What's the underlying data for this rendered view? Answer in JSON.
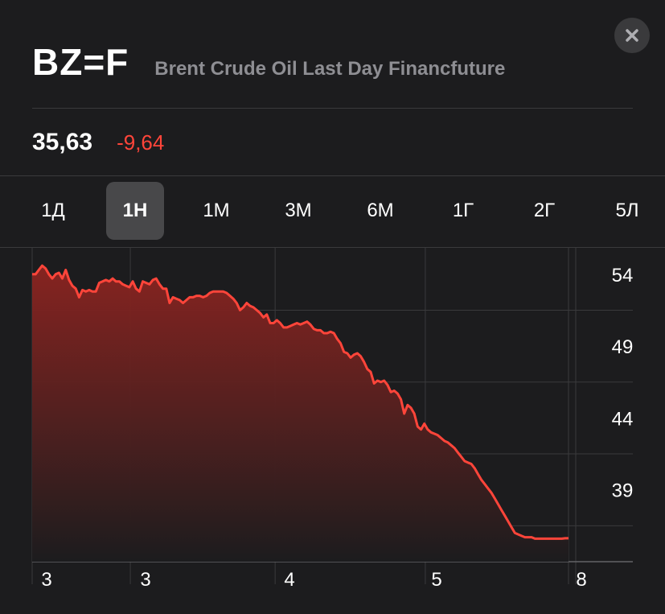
{
  "header": {
    "ticker": "BZ=F",
    "company_name": "Brent Crude Oil Last Day Financfuture"
  },
  "quote": {
    "price": "35,63",
    "change": "-9,64"
  },
  "tabs": [
    {
      "label": "1Д",
      "active": false
    },
    {
      "label": "1Н",
      "active": true
    },
    {
      "label": "1М",
      "active": false
    },
    {
      "label": "3М",
      "active": false
    },
    {
      "label": "6М",
      "active": false
    },
    {
      "label": "1Г",
      "active": false
    },
    {
      "label": "2Г",
      "active": false
    },
    {
      "label": "5Л",
      "active": false
    }
  ],
  "icons": {
    "close": "close-icon"
  },
  "colors": {
    "background": "#1c1c1e",
    "line": "#ff453a",
    "negative": "#ff453a",
    "grid": "#3a3a3c",
    "muted": "#8e8e93"
  },
  "chart_data": {
    "type": "area",
    "y_tick_labels": [
      "54",
      "49",
      "44",
      "39"
    ],
    "x_tick_labels": [
      "3",
      "3",
      "4",
      "5",
      "8"
    ],
    "ylim": [
      34,
      55.5
    ],
    "y_axis_position": "right",
    "grid": true,
    "x": [
      0,
      1,
      2,
      3,
      4,
      5,
      6,
      7,
      8,
      9,
      10,
      11,
      12,
      13,
      14,
      15,
      16,
      17,
      18,
      19,
      20,
      21,
      22,
      23,
      24,
      25,
      26,
      27,
      28,
      29,
      30,
      31,
      32,
      33,
      34,
      35,
      36,
      37,
      38,
      39,
      40,
      41,
      42,
      43,
      44,
      45,
      46,
      47,
      48,
      49,
      50,
      51,
      52,
      53,
      54,
      55,
      56,
      57,
      58,
      59,
      60,
      61,
      62,
      63,
      64,
      65,
      66,
      67,
      68,
      69,
      70,
      71,
      72,
      73,
      74,
      75,
      76,
      77,
      78,
      79,
      80,
      81,
      82,
      83,
      84,
      85,
      86,
      87,
      88,
      89,
      90,
      91,
      92,
      93,
      94,
      95,
      96,
      97,
      98,
      99,
      100,
      101,
      102,
      103,
      104,
      105,
      106,
      107,
      108,
      109,
      110,
      111,
      112,
      113,
      114,
      115,
      116,
      117,
      118,
      119,
      120,
      121,
      122,
      123,
      124,
      125,
      126,
      127,
      128,
      129,
      130,
      131,
      132,
      133,
      134,
      135,
      136,
      137,
      138,
      139,
      140,
      141,
      142,
      143,
      144,
      145,
      146,
      147,
      148,
      149,
      150,
      151,
      152,
      153,
      154,
      155,
      156,
      157,
      158,
      159,
      160
    ],
    "values": [
      54.0,
      54.0,
      54.3,
      54.6,
      54.4,
      54.0,
      53.7,
      54.0,
      54.1,
      53.7,
      54.3,
      53.6,
      53.2,
      53.0,
      52.4,
      52.9,
      52.8,
      52.9,
      52.8,
      52.8,
      53.4,
      53.5,
      53.6,
      53.5,
      53.7,
      53.5,
      53.5,
      53.3,
      53.2,
      53.1,
      53.5,
      53.0,
      52.8,
      53.5,
      53.4,
      53.3,
      53.6,
      53.7,
      53.3,
      53.0,
      53.0,
      52.0,
      52.4,
      52.3,
      52.2,
      52.0,
      52.2,
      52.4,
      52.4,
      52.5,
      52.5,
      52.4,
      52.5,
      52.7,
      52.8,
      52.8,
      52.8,
      52.8,
      52.7,
      52.5,
      52.3,
      52.0,
      51.5,
      51.7,
      52.0,
      51.8,
      51.7,
      51.5,
      51.3,
      51.0,
      51.2,
      50.6,
      50.6,
      50.8,
      50.6,
      50.3,
      50.3,
      50.4,
      50.5,
      50.6,
      50.5,
      50.6,
      50.7,
      50.5,
      50.2,
      50.1,
      50.1,
      49.9,
      49.9,
      50.0,
      49.9,
      49.5,
      49.2,
      48.6,
      48.5,
      48.2,
      48.4,
      48.5,
      48.3,
      47.9,
      47.4,
      47.2,
      46.4,
      46.6,
      46.5,
      46.6,
      46.3,
      45.8,
      45.9,
      45.7,
      45.3,
      44.3,
      44.9,
      44.7,
      44.3,
      43.4,
      43.2,
      43.6,
      43.2,
      43.0,
      42.9,
      42.8,
      42.6,
      42.4,
      42.3,
      42.1,
      41.9,
      41.6,
      41.3,
      41.0,
      40.9,
      40.8,
      40.5,
      40.1,
      39.7,
      39.4,
      39.1,
      38.8,
      38.4,
      38.0,
      37.6,
      37.2,
      36.8,
      36.4,
      36.0,
      35.9,
      35.8,
      35.7,
      35.7,
      35.7,
      35.6,
      35.6,
      35.6,
      35.6,
      35.6,
      35.6,
      35.6,
      35.6,
      35.6,
      35.63,
      35.63
    ]
  }
}
